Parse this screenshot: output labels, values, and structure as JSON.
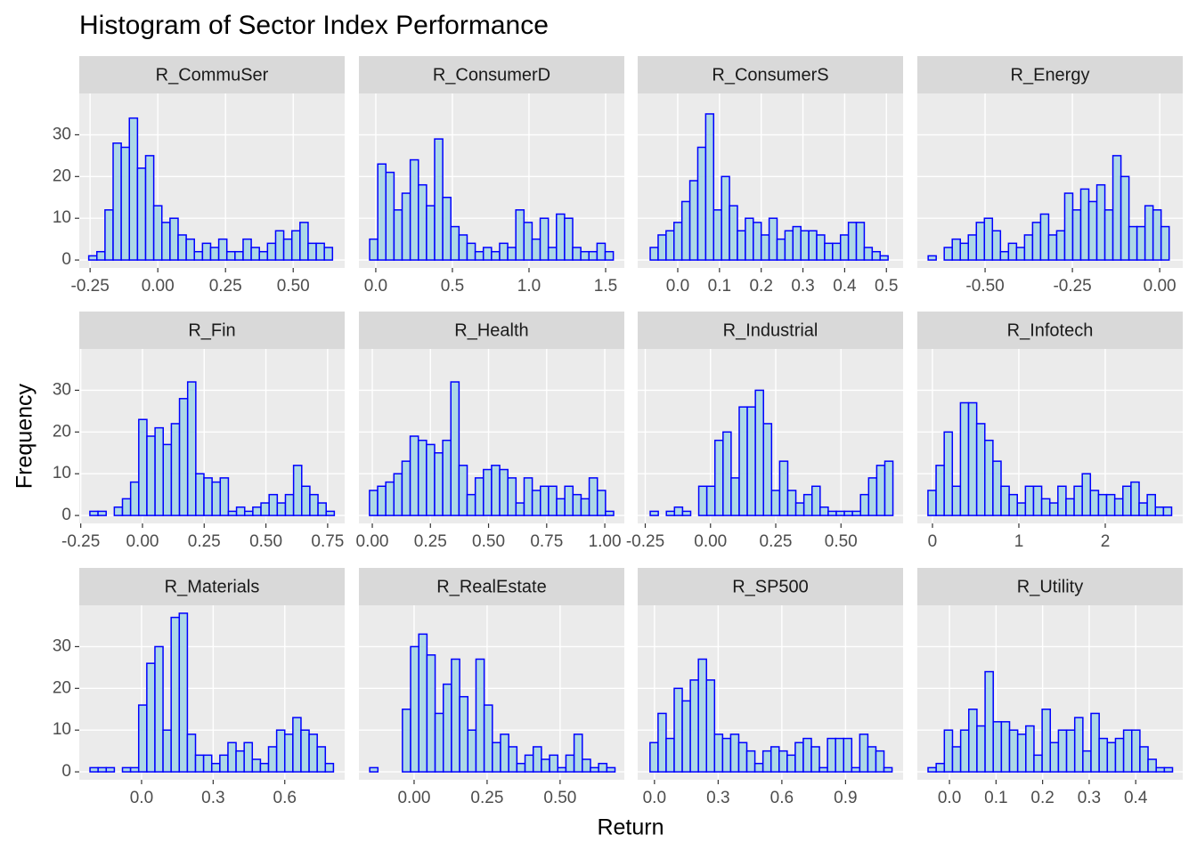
{
  "chart_data": {
    "type": "histogram",
    "title": "Histogram of Sector Index Performance",
    "x_label": "Return",
    "y_label": "Frequency",
    "fill": "#add8e6",
    "edge_color": "#0000ff",
    "grid": true,
    "ylim": [
      -1.9,
      39.9
    ],
    "yticks": [
      0,
      10,
      20,
      30
    ],
    "facets": [
      {
        "title": "R_CommuSer",
        "bins": [
          -0.255,
          -0.225,
          -0.195,
          -0.165,
          -0.135,
          -0.105,
          -0.075,
          -0.045,
          -0.015,
          0.015,
          0.045,
          0.075,
          0.105,
          0.135,
          0.165,
          0.195,
          0.225,
          0.255,
          0.285,
          0.315,
          0.345,
          0.375,
          0.405,
          0.435,
          0.465,
          0.495,
          0.525,
          0.555,
          0.585,
          0.615,
          0.645
        ],
        "counts": [
          1,
          2,
          12,
          28,
          27,
          34,
          22,
          25,
          13,
          9,
          10,
          6,
          5,
          2,
          4,
          3,
          5,
          2,
          2,
          5,
          3,
          2,
          4,
          7,
          5,
          7,
          9,
          4,
          4,
          3
        ],
        "xlim": [
          -0.29,
          0.69
        ],
        "xticks": [
          -0.25,
          {
            "value": 0,
            "label": "0.00"
          },
          0.25,
          {
            "value": 0.5,
            "label": "0.50"
          }
        ]
      },
      {
        "title": "R_ConsumerD",
        "bins": [
          -0.04,
          0.013,
          0.066,
          0.119,
          0.172,
          0.225,
          0.278,
          0.331,
          0.384,
          0.437,
          0.49,
          0.543,
          0.596,
          0.649,
          0.702,
          0.755,
          0.808,
          0.861,
          0.914,
          0.967,
          1.02,
          1.073,
          1.126,
          1.179,
          1.232,
          1.285,
          1.338,
          1.391,
          1.444,
          1.497,
          1.55
        ],
        "counts": [
          5,
          23,
          21,
          12,
          16,
          24,
          18,
          13,
          29,
          15,
          8,
          6,
          4,
          2,
          3,
          2,
          4,
          3,
          12,
          9,
          5,
          10,
          3,
          11,
          10,
          3,
          2,
          2,
          4,
          2
        ],
        "xlim": [
          -0.11,
          1.622
        ],
        "xticks": [
          {
            "value": 0,
            "label": "0.0"
          },
          0.5,
          {
            "value": 1,
            "label": "1.0"
          },
          1.5
        ]
      },
      {
        "title": "R_ConsumerS",
        "bins": [
          -0.066,
          -0.047,
          -0.028,
          -0.009,
          0.01,
          0.029,
          0.048,
          0.067,
          0.086,
          0.105,
          0.124,
          0.143,
          0.162,
          0.181,
          0.2,
          0.219,
          0.238,
          0.257,
          0.276,
          0.295,
          0.314,
          0.333,
          0.352,
          0.371,
          0.39,
          0.409,
          0.428,
          0.447,
          0.466,
          0.485,
          0.504
        ],
        "counts": [
          3,
          6,
          7,
          9,
          14,
          19,
          27,
          35,
          12,
          20,
          13,
          7,
          10,
          9,
          6,
          10,
          5,
          7,
          8,
          7,
          7,
          6,
          4,
          4,
          6,
          9,
          9,
          3,
          2,
          1
        ],
        "xlim": [
          -0.096,
          0.54
        ],
        "xticks": [
          {
            "value": 0,
            "label": "0.0"
          },
          0.1,
          0.2,
          0.3,
          0.4,
          0.5
        ]
      },
      {
        "title": "R_Energy",
        "bins": [
          -0.663,
          -0.64,
          -0.617,
          -0.594,
          -0.571,
          -0.548,
          -0.525,
          -0.502,
          -0.479,
          -0.456,
          -0.433,
          -0.41,
          -0.387,
          -0.364,
          -0.341,
          -0.318,
          -0.295,
          -0.272,
          -0.249,
          -0.226,
          -0.203,
          -0.18,
          -0.157,
          -0.134,
          -0.111,
          -0.088,
          -0.065,
          -0.042,
          -0.019,
          0.004,
          0.027
        ],
        "counts": [
          1,
          0,
          3,
          5,
          4,
          6,
          9,
          10,
          7,
          2,
          4,
          3,
          6,
          9,
          11,
          6,
          7,
          16,
          12,
          17,
          14,
          18,
          12,
          25,
          20,
          8,
          8,
          13,
          12,
          8
        ],
        "xlim": [
          -0.694,
          0.066
        ],
        "xticks": [
          {
            "value": -0.5,
            "label": "-0.50"
          },
          -0.25,
          {
            "value": 0,
            "label": "0.00"
          }
        ]
      },
      {
        "title": "R_Fin",
        "bins": [
          -0.213,
          -0.18,
          -0.147,
          -0.114,
          -0.081,
          -0.048,
          -0.015,
          0.018,
          0.051,
          0.084,
          0.117,
          0.15,
          0.183,
          0.216,
          0.249,
          0.282,
          0.315,
          0.348,
          0.381,
          0.414,
          0.447,
          0.48,
          0.513,
          0.546,
          0.579,
          0.612,
          0.645,
          0.678,
          0.711,
          0.744,
          0.777
        ],
        "counts": [
          1,
          1,
          0,
          2,
          4,
          8,
          23,
          19,
          21,
          17,
          22,
          28,
          32,
          10,
          9,
          8,
          9,
          1,
          2,
          1,
          2,
          3,
          5,
          3,
          5,
          12,
          7,
          5,
          3,
          1
        ],
        "xlim": [
          -0.256,
          0.819
        ],
        "xticks": [
          -0.25,
          {
            "value": 0,
            "label": "0.00"
          },
          0.25,
          {
            "value": 0.5,
            "label": "0.50"
          },
          0.75
        ]
      },
      {
        "title": "R_Health",
        "bins": [
          -0.012,
          0.023,
          0.058,
          0.093,
          0.128,
          0.163,
          0.198,
          0.233,
          0.268,
          0.303,
          0.338,
          0.373,
          0.408,
          0.443,
          0.478,
          0.513,
          0.548,
          0.583,
          0.618,
          0.653,
          0.688,
          0.723,
          0.758,
          0.793,
          0.828,
          0.863,
          0.898,
          0.933,
          0.968,
          1.003,
          1.038
        ],
        "counts": [
          6,
          7,
          8,
          10,
          13,
          19,
          18,
          17,
          15,
          18,
          32,
          12,
          5,
          9,
          11,
          12,
          11,
          9,
          3,
          9,
          6,
          7,
          7,
          4,
          7,
          5,
          4,
          9,
          6,
          1
        ],
        "xlim": [
          -0.0575,
          1.084
        ],
        "xticks": [
          {
            "value": 0,
            "label": "0.00"
          },
          0.25,
          {
            "value": 0.5,
            "label": "0.50"
          },
          0.75,
          {
            "value": 1,
            "label": "1.00"
          }
        ]
      },
      {
        "title": "R_Industrial",
        "bins": [
          -0.231,
          -0.2,
          -0.169,
          -0.138,
          -0.107,
          -0.076,
          -0.045,
          -0.014,
          0.017,
          0.048,
          0.079,
          0.11,
          0.141,
          0.172,
          0.203,
          0.234,
          0.265,
          0.296,
          0.327,
          0.358,
          0.389,
          0.42,
          0.451,
          0.482,
          0.513,
          0.544,
          0.575,
          0.606,
          0.637,
          0.668,
          0.699
        ],
        "counts": [
          1,
          0,
          1,
          2,
          1,
          0,
          7,
          7,
          18,
          20,
          9,
          26,
          26,
          30,
          22,
          6,
          13,
          6,
          3,
          5,
          7,
          2,
          1,
          1,
          1,
          1,
          5,
          9,
          12,
          13
        ],
        "xlim": [
          -0.279,
          0.738
        ],
        "xticks": [
          -0.25,
          {
            "value": 0,
            "label": "0.00"
          },
          0.25,
          {
            "value": 0.5,
            "label": "0.50"
          }
        ]
      },
      {
        "title": "R_Infotech",
        "bins": [
          -0.052,
          0.042,
          0.136,
          0.23,
          0.324,
          0.418,
          0.512,
          0.606,
          0.7,
          0.794,
          0.888,
          0.982,
          1.076,
          1.17,
          1.264,
          1.358,
          1.452,
          1.546,
          1.64,
          1.734,
          1.828,
          1.922,
          2.016,
          2.11,
          2.204,
          2.298,
          2.392,
          2.486,
          2.58,
          2.674,
          2.768
        ],
        "counts": [
          6,
          12,
          20,
          7,
          27,
          27,
          22,
          18,
          13,
          7,
          5,
          3,
          7,
          7,
          4,
          3,
          7,
          4,
          7,
          10,
          6,
          5,
          5,
          4,
          7,
          8,
          3,
          5,
          2,
          2
        ],
        "xlim": [
          -0.175,
          2.897
        ],
        "xticks": [
          0,
          1,
          2
        ]
      },
      {
        "title": "R_Materials",
        "bins": [
          -0.216,
          -0.182,
          -0.148,
          -0.114,
          -0.08,
          -0.046,
          -0.012,
          0.022,
          0.056,
          0.09,
          0.124,
          0.158,
          0.192,
          0.226,
          0.26,
          0.294,
          0.328,
          0.362,
          0.396,
          0.43,
          0.464,
          0.498,
          0.532,
          0.566,
          0.6,
          0.634,
          0.668,
          0.702,
          0.736,
          0.77,
          0.804
        ],
        "counts": [
          1,
          1,
          1,
          0,
          1,
          1,
          16,
          26,
          30,
          10,
          37,
          38,
          9,
          4,
          4,
          2,
          4,
          7,
          5,
          7,
          3,
          2,
          6,
          10,
          9,
          13,
          10,
          9,
          6,
          2
        ],
        "xlim": [
          -0.261,
          0.851
        ],
        "xticks": [
          {
            "value": 0,
            "label": "0.0"
          },
          0.3,
          0.6
        ]
      },
      {
        "title": "R_RealEstate",
        "bins": [
          -0.152,
          -0.124,
          -0.096,
          -0.068,
          -0.04,
          -0.012,
          0.016,
          0.044,
          0.072,
          0.1,
          0.128,
          0.156,
          0.184,
          0.212,
          0.24,
          0.268,
          0.296,
          0.324,
          0.352,
          0.38,
          0.408,
          0.436,
          0.464,
          0.492,
          0.52,
          0.548,
          0.576,
          0.604,
          0.632,
          0.66,
          0.688
        ],
        "counts": [
          1,
          0,
          0,
          0,
          15,
          30,
          33,
          28,
          14,
          21,
          27,
          18,
          10,
          27,
          16,
          7,
          9,
          6,
          2,
          4,
          6,
          3,
          4,
          1,
          4,
          9,
          3,
          1,
          2,
          1
        ],
        "xlim": [
          -0.189,
          0.72
        ],
        "xticks": [
          {
            "value": 0,
            "label": "0.00"
          },
          0.25,
          {
            "value": 0.5,
            "label": "0.50"
          }
        ]
      },
      {
        "title": "R_SP500",
        "bins": [
          -0.021,
          0.017,
          0.055,
          0.093,
          0.131,
          0.169,
          0.207,
          0.245,
          0.283,
          0.321,
          0.359,
          0.397,
          0.435,
          0.473,
          0.511,
          0.549,
          0.587,
          0.625,
          0.663,
          0.701,
          0.739,
          0.777,
          0.815,
          0.853,
          0.891,
          0.929,
          0.967,
          1.005,
          1.043,
          1.081,
          1.119
        ],
        "counts": [
          7,
          14,
          8,
          20,
          17,
          22,
          27,
          22,
          9,
          8,
          9,
          7,
          5,
          2,
          5,
          6,
          5,
          4,
          7,
          8,
          6,
          1,
          8,
          8,
          8,
          1,
          9,
          6,
          5,
          1
        ],
        "xlim": [
          -0.079,
          1.171
        ],
        "xticks": [
          {
            "value": 0,
            "label": "0.0"
          },
          0.3,
          0.6,
          0.9
        ]
      },
      {
        "title": "R_Utility",
        "bins": [
          -0.046,
          -0.0285,
          -0.011,
          0.0065,
          0.024,
          0.0415,
          0.059,
          0.0765,
          0.094,
          0.1115,
          0.129,
          0.1465,
          0.164,
          0.1815,
          0.199,
          0.2165,
          0.234,
          0.2515,
          0.269,
          0.2865,
          0.304,
          0.3215,
          0.339,
          0.3565,
          0.374,
          0.3915,
          0.409,
          0.4265,
          0.444,
          0.4615,
          0.479
        ],
        "counts": [
          1,
          2,
          10,
          6,
          10,
          15,
          11,
          24,
          12,
          12,
          10,
          9,
          11,
          4,
          15,
          7,
          10,
          10,
          13,
          5,
          14,
          8,
          7,
          8,
          10,
          10,
          6,
          3,
          1,
          1
        ],
        "xlim": [
          -0.069,
          0.501
        ],
        "xticks": [
          {
            "value": 0,
            "label": "0.0"
          },
          0.1,
          0.2,
          0.3,
          0.4
        ]
      }
    ]
  }
}
